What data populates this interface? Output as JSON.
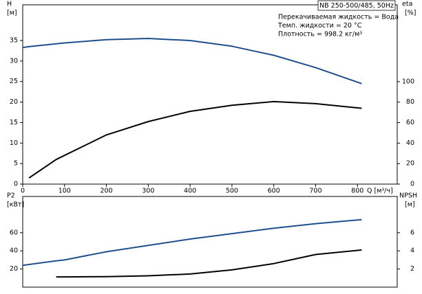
{
  "chart_data": [
    {
      "type": "line",
      "title": "NB 250-500/485, 50Hz",
      "annotations": [
        "Перекачиваемая жидкость = Вода",
        "Темп. жидкости = 20 °C",
        "Плотность = 998.2 кг/м³"
      ],
      "ylabel": "H",
      "yunit": "[м]",
      "y2label": "eta",
      "y2unit": "[%]",
      "xlabel": "Q [м³/ч]",
      "x": [
        0,
        15,
        80,
        100,
        200,
        300,
        400,
        500,
        600,
        700,
        810
      ],
      "xlim": [
        0,
        895
      ],
      "xticks": [
        0,
        100,
        200,
        300,
        400,
        500,
        600,
        700,
        800
      ],
      "ylim": [
        0,
        43.7
      ],
      "yticks": [
        0,
        5,
        10,
        15,
        20,
        25,
        30,
        35
      ],
      "y2lim": [
        0,
        175
      ],
      "y2ticks": [
        0,
        20,
        40,
        60,
        80,
        100
      ],
      "series": [
        {
          "name": "H",
          "color": "#1f4e8c",
          "values": [
            33.3,
            33.5,
            34.2,
            34.4,
            35.2,
            35.5,
            35.0,
            33.6,
            31.4,
            28.4,
            24.5
          ]
        },
        {
          "name": "eta",
          "color": "#000000",
          "axis": "y2",
          "values": [
            null,
            6,
            24,
            28,
            48,
            61,
            71,
            77,
            80.5,
            78.5,
            74
          ]
        }
      ]
    },
    {
      "type": "line",
      "ylabel": "P2",
      "yunit": "[кВт]",
      "y2label": "NPSH",
      "y2unit": "[м]",
      "x": [
        0,
        80,
        100,
        200,
        300,
        400,
        500,
        600,
        700,
        810
      ],
      "xlim": [
        0,
        895
      ],
      "ylim": [
        0,
        100
      ],
      "yticks": [
        20,
        40,
        60
      ],
      "y2lim": [
        0,
        10
      ],
      "y2ticks": [
        2,
        4,
        6
      ],
      "series": [
        {
          "name": "P2",
          "color": "#1f4e8c",
          "values": [
            24,
            29,
            30,
            39,
            46,
            53,
            59,
            65,
            70,
            74.5
          ]
        },
        {
          "name": "NPSH",
          "color": "#000000",
          "axis": "y2",
          "values": [
            null,
            1.13,
            1.13,
            1.15,
            1.25,
            1.45,
            1.9,
            2.6,
            3.6,
            4.1
          ]
        }
      ]
    }
  ]
}
